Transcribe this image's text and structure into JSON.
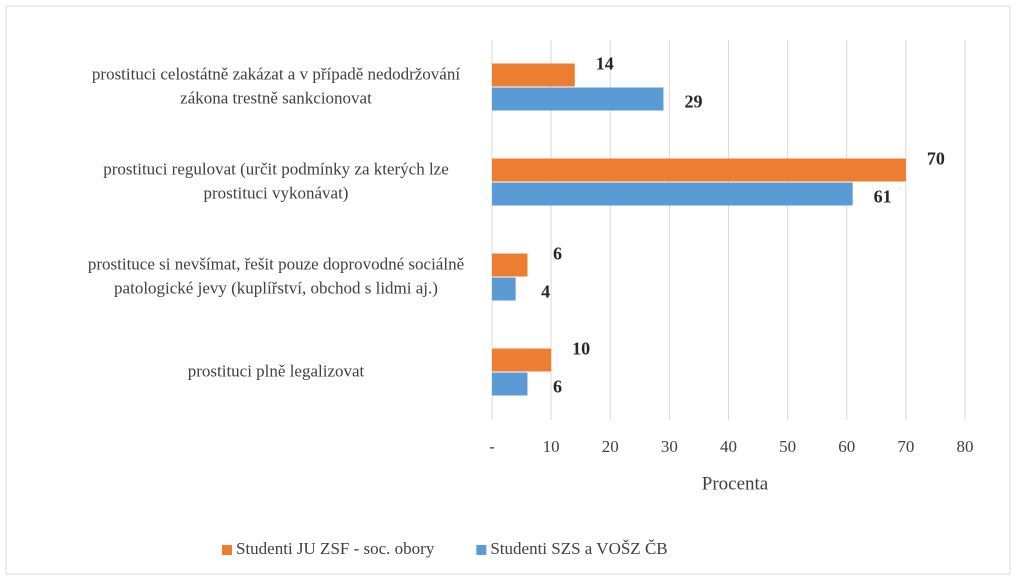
{
  "chart_data": {
    "type": "bar",
    "orientation": "horizontal",
    "categories": [
      "prostituci celostátně zakázat a v případě nedodržování zákona trestně sankcionovat",
      "prostituci regulovat (určit podmínky za kterých lze prostituci vykonávat)",
      "prostituce si nevšímat, řešit pouze doprovodné sociálně patologické jevy (kuplířství, obchod s lidmi aj.)",
      "prostituci plně legalizovat"
    ],
    "series": [
      {
        "name": "Studenti JU ZSF - soc. obory",
        "color": "#ed7d31",
        "values": [
          14,
          70,
          6,
          10
        ]
      },
      {
        "name": "Studenti SZS a VOŠZ ČB",
        "color": "#5b9bd5",
        "values": [
          29,
          61,
          4,
          6
        ]
      }
    ],
    "xlabel": "Procenta",
    "xlim": [
      0,
      80
    ],
    "xticks": [
      {
        "value": 0,
        "label": "-"
      },
      10,
      20,
      30,
      40,
      50,
      60,
      70,
      80
    ],
    "grid": true,
    "legend": "bottom"
  }
}
